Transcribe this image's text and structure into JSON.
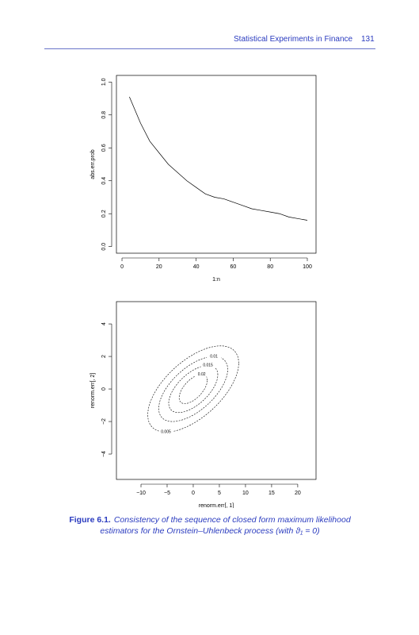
{
  "header": {
    "title": "Statistical Experiments in Finance",
    "page": "131"
  },
  "chart_data": [
    {
      "type": "line",
      "xlabel": "1:n",
      "ylabel": "abs.err.prob",
      "color": "#000000",
      "x": [
        4,
        10,
        15,
        20,
        25,
        30,
        35,
        40,
        45,
        50,
        55,
        60,
        65,
        70,
        75,
        80,
        85,
        90,
        95,
        100
      ],
      "values": [
        0.91,
        0.75,
        0.64,
        0.57,
        0.5,
        0.45,
        0.4,
        0.36,
        0.32,
        0.3,
        0.29,
        0.27,
        0.25,
        0.23,
        0.22,
        0.21,
        0.2,
        0.18,
        0.17,
        0.16
      ],
      "xlim": [
        -3,
        104.7
      ],
      "ylim": [
        -0.04,
        1.04
      ],
      "xticks": [
        0,
        20,
        40,
        60,
        80,
        100
      ],
      "yticks": [
        {
          "value": 0,
          "label": "0.0"
        },
        {
          "value": 0.2,
          "label": "0.2"
        },
        {
          "value": 0.4,
          "label": "0.4"
        },
        {
          "value": 0.6,
          "label": "0.6"
        },
        {
          "value": 0.8,
          "label": "0.8"
        },
        {
          "value": 1,
          "label": "1.0"
        }
      ]
    },
    {
      "type": "contour",
      "xlabel": "renorm.err[, 1]",
      "ylabel": "renorm.err[, 2]",
      "color": "#000000",
      "contours": [
        {
          "level": 0.005,
          "cx": 0,
          "cy": 0,
          "rx": 8.7,
          "ry": 2.65,
          "rho": 0.6,
          "label_at": "bottom"
        },
        {
          "level": 0.01,
          "cx": 0,
          "cy": 0,
          "rx": 6.6,
          "ry": 2.0,
          "rho": 0.6,
          "label_at": "top"
        },
        {
          "level": 0.015,
          "cx": 0,
          "cy": 0,
          "rx": 4.7,
          "ry": 1.45,
          "rho": 0.6,
          "label_at": "top"
        },
        {
          "level": 0.02,
          "cx": 0,
          "cy": 0,
          "rx": 2.7,
          "ry": 0.9,
          "rho": 0.6,
          "label_at": "top"
        }
      ],
      "xlim": [
        -14.7,
        23.5
      ],
      "ylim": [
        -5.56,
        5.37
      ],
      "xticks": [
        {
          "value": -10,
          "label": "−10"
        },
        {
          "value": -5,
          "label": "−5"
        },
        0,
        5,
        10,
        15,
        20
      ],
      "yticks": [
        {
          "value": -4,
          "label": "−4"
        },
        {
          "value": -2,
          "label": "−2"
        },
        0,
        2,
        4
      ]
    }
  ],
  "caption": {
    "label": "Figure 6.1.",
    "text": "Consistency of the sequence of closed form maximum likelihood estimators for the Ornstein–Uhlenbeck process (with ϑ₁ = 0)"
  }
}
